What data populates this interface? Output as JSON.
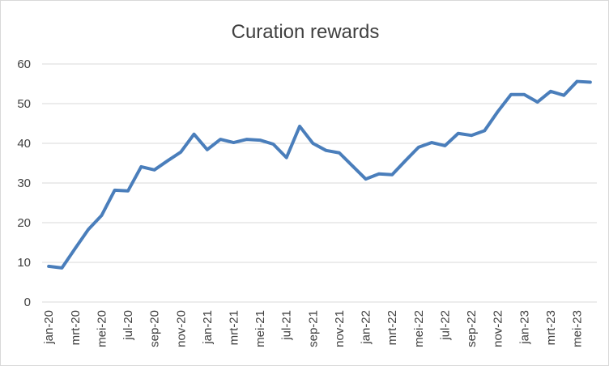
{
  "chart_data": {
    "type": "line",
    "title": "Curation rewards",
    "xlabel": "",
    "ylabel": "",
    "ylim": [
      0,
      60
    ],
    "yticks": [
      0,
      10,
      20,
      30,
      40,
      50,
      60
    ],
    "grid": true,
    "legend": "none",
    "x": [
      "jan-20",
      "feb-20",
      "mrt-20",
      "apr-20",
      "mei-20",
      "jun-20",
      "jul-20",
      "aug-20",
      "sep-20",
      "okt-20",
      "nov-20",
      "dec-20",
      "jan-21",
      "feb-21",
      "mrt-21",
      "apr-21",
      "mei-21",
      "jun-21",
      "jul-21",
      "aug-21",
      "sep-21",
      "okt-21",
      "nov-21",
      "dec-21",
      "jan-22",
      "feb-22",
      "mrt-22",
      "apr-22",
      "mei-22",
      "jun-22",
      "jul-22",
      "aug-22",
      "sep-22",
      "okt-22",
      "nov-22",
      "dec-22",
      "jan-23",
      "feb-23",
      "mrt-23",
      "apr-23",
      "mei-23",
      "jun-23"
    ],
    "x_tick_labels": [
      "jan-20",
      "mrt-20",
      "mei-20",
      "jul-20",
      "sep-20",
      "nov-20",
      "jan-21",
      "mrt-21",
      "mei-21",
      "jul-21",
      "sep-21",
      "nov-21",
      "jan-22",
      "mrt-22",
      "mei-22",
      "jul-22",
      "sep-22",
      "nov-22",
      "jan-23",
      "mrt-23",
      "mei-23"
    ],
    "series": [
      {
        "color": "#4a7ebb",
        "values": [
          9.0,
          8.6,
          13.5,
          18.3,
          21.8,
          28.2,
          28.0,
          34.1,
          33.3,
          35.6,
          37.8,
          42.3,
          38.4,
          41.0,
          40.2,
          41.0,
          40.8,
          39.8,
          36.4,
          44.3,
          40.0,
          38.2,
          37.6,
          34.3,
          31.0,
          32.3,
          32.1,
          35.6,
          39.0,
          40.2,
          39.4,
          42.5,
          42.0,
          43.2,
          48.0,
          52.3,
          52.3,
          50.4,
          53.1,
          52.1,
          55.6,
          55.4
        ]
      }
    ]
  }
}
